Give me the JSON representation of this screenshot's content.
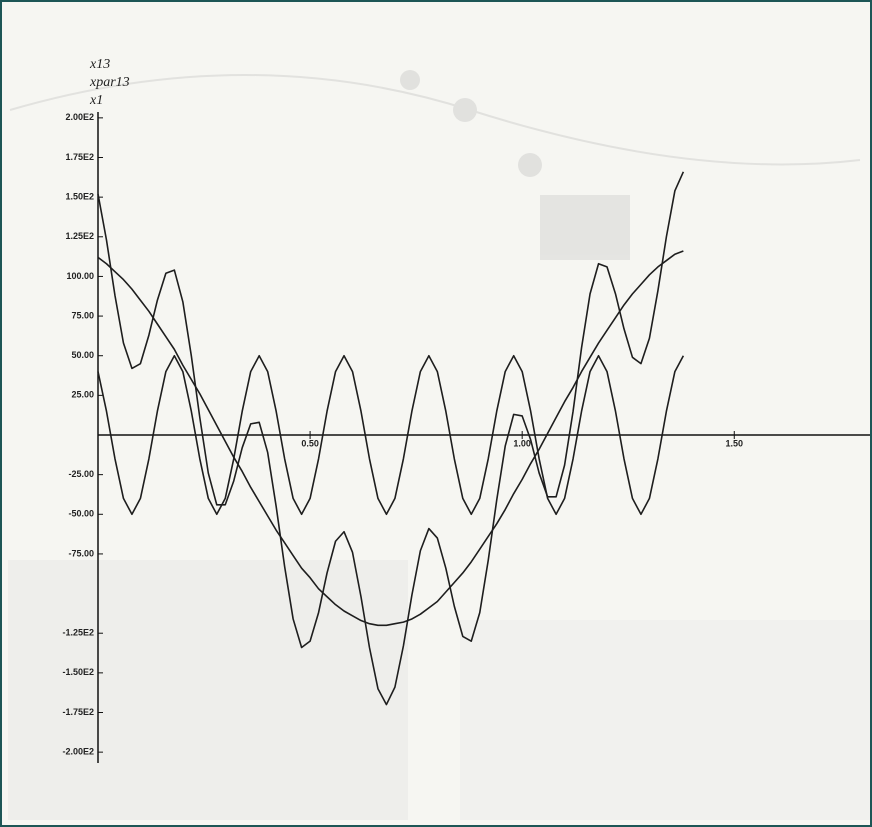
{
  "chart_data": {
    "type": "line",
    "x": [
      0,
      0.02,
      0.04,
      0.06,
      0.08,
      0.1,
      0.12,
      0.14,
      0.16,
      0.18,
      0.2,
      0.22,
      0.24,
      0.26,
      0.28,
      0.3,
      0.32,
      0.34,
      0.36,
      0.38,
      0.4,
      0.42,
      0.44,
      0.46,
      0.48,
      0.5,
      0.52,
      0.54,
      0.56,
      0.58,
      0.6,
      0.62,
      0.64,
      0.66,
      0.68,
      0.7,
      0.72,
      0.74,
      0.76,
      0.78,
      0.8,
      0.82,
      0.84,
      0.86,
      0.88,
      0.9,
      0.92,
      0.94,
      0.96,
      0.98,
      1,
      1.02,
      1.04,
      1.06,
      1.08,
      1.1,
      1.12,
      1.14,
      1.16,
      1.18,
      1.2,
      1.22,
      1.24,
      1.26,
      1.28,
      1.3,
      1.32,
      1.34,
      1.36,
      1.38
    ],
    "series": [
      {
        "name": "x13",
        "color": "#1e1e1e",
        "values": [
          40,
          15,
          -15,
          -40,
          -50,
          -40,
          -15,
          15,
          40,
          50,
          40,
          15,
          -15,
          -40,
          -50,
          -40,
          -15,
          15,
          40,
          50,
          40,
          15,
          -15,
          -40,
          -50,
          -40,
          -15,
          15,
          40,
          50,
          40,
          15,
          -15,
          -40,
          -50,
          -40,
          -15,
          15,
          40,
          50,
          40,
          15,
          -15,
          -40,
          -50,
          -40,
          -15,
          15,
          40,
          50,
          40,
          15,
          -15,
          -40,
          -50,
          -40,
          -15,
          15,
          40,
          50,
          40,
          15,
          -15,
          -40,
          -50,
          -40,
          -15,
          15,
          40,
          50
        ]
      },
      {
        "name": "xpar13",
        "color": "#1e1e1e",
        "values": [
          152,
          123,
          88,
          58,
          42,
          45,
          63,
          85,
          102,
          104,
          84,
          50,
          11,
          -24,
          -44,
          -44,
          -29,
          -8,
          7,
          8,
          -11,
          -45,
          -83,
          -116,
          -134,
          -130,
          -112,
          -87,
          -67,
          -61,
          -74,
          -102,
          -134,
          -160,
          -170,
          -159,
          -133,
          -101,
          -73,
          -59,
          -65,
          -84,
          -108,
          -127,
          -130,
          -112,
          -79,
          -41,
          -7,
          13,
          12,
          -3,
          -24,
          -39,
          -39,
          -19,
          15,
          55,
          89,
          108,
          106,
          89,
          67,
          49,
          45,
          61,
          91,
          125,
          154,
          166
        ]
      },
      {
        "name": "x1",
        "color": "#1e1e1e",
        "values": [
          112,
          108,
          103,
          98,
          92,
          85,
          78,
          70,
          62,
          54,
          44,
          35,
          26,
          16,
          6,
          -4,
          -14,
          -23,
          -33,
          -42,
          -51,
          -60,
          -68,
          -76,
          -84,
          -90,
          -97,
          -102,
          -107,
          -111,
          -114,
          -117,
          -119,
          -120,
          -120,
          -119,
          -118,
          -116,
          -113,
          -109,
          -105,
          -99,
          -93,
          -87,
          -80,
          -72,
          -64,
          -56,
          -47,
          -37,
          -28,
          -18,
          -9,
          1,
          11,
          21,
          30,
          40,
          49,
          58,
          66,
          74,
          82,
          89,
          95,
          101,
          106,
          110,
          114,
          116
        ]
      }
    ],
    "xlim": [
      0,
      1.82
    ],
    "xticks": [
      {
        "value": 0.5,
        "label": "0.50"
      },
      {
        "value": 1,
        "label": "1.00"
      },
      {
        "value": 1.5,
        "label": "1.50"
      }
    ],
    "ylim": [
      -210,
      210
    ],
    "yticks": [
      {
        "value": 200,
        "label": "2.00E2"
      },
      {
        "value": 175,
        "label": "1.75E2"
      },
      {
        "value": 150,
        "label": "1.50E2"
      },
      {
        "value": 125,
        "label": "1.25E2"
      },
      {
        "value": 100,
        "label": "100.00"
      },
      {
        "value": 75,
        "label": "75.00"
      },
      {
        "value": 50,
        "label": "50.00"
      },
      {
        "value": 25,
        "label": "25.00"
      },
      {
        "value": -25,
        "label": "-25.00"
      },
      {
        "value": -50,
        "label": "-50.00"
      },
      {
        "value": -75,
        "label": "-75.00"
      },
      {
        "value": -125,
        "label": "-1.25E2"
      },
      {
        "value": -150,
        "label": "-1.50E2"
      },
      {
        "value": -175,
        "label": "-1.75E2"
      },
      {
        "value": -200,
        "label": "-2.00E2"
      }
    ],
    "grid": false
  }
}
